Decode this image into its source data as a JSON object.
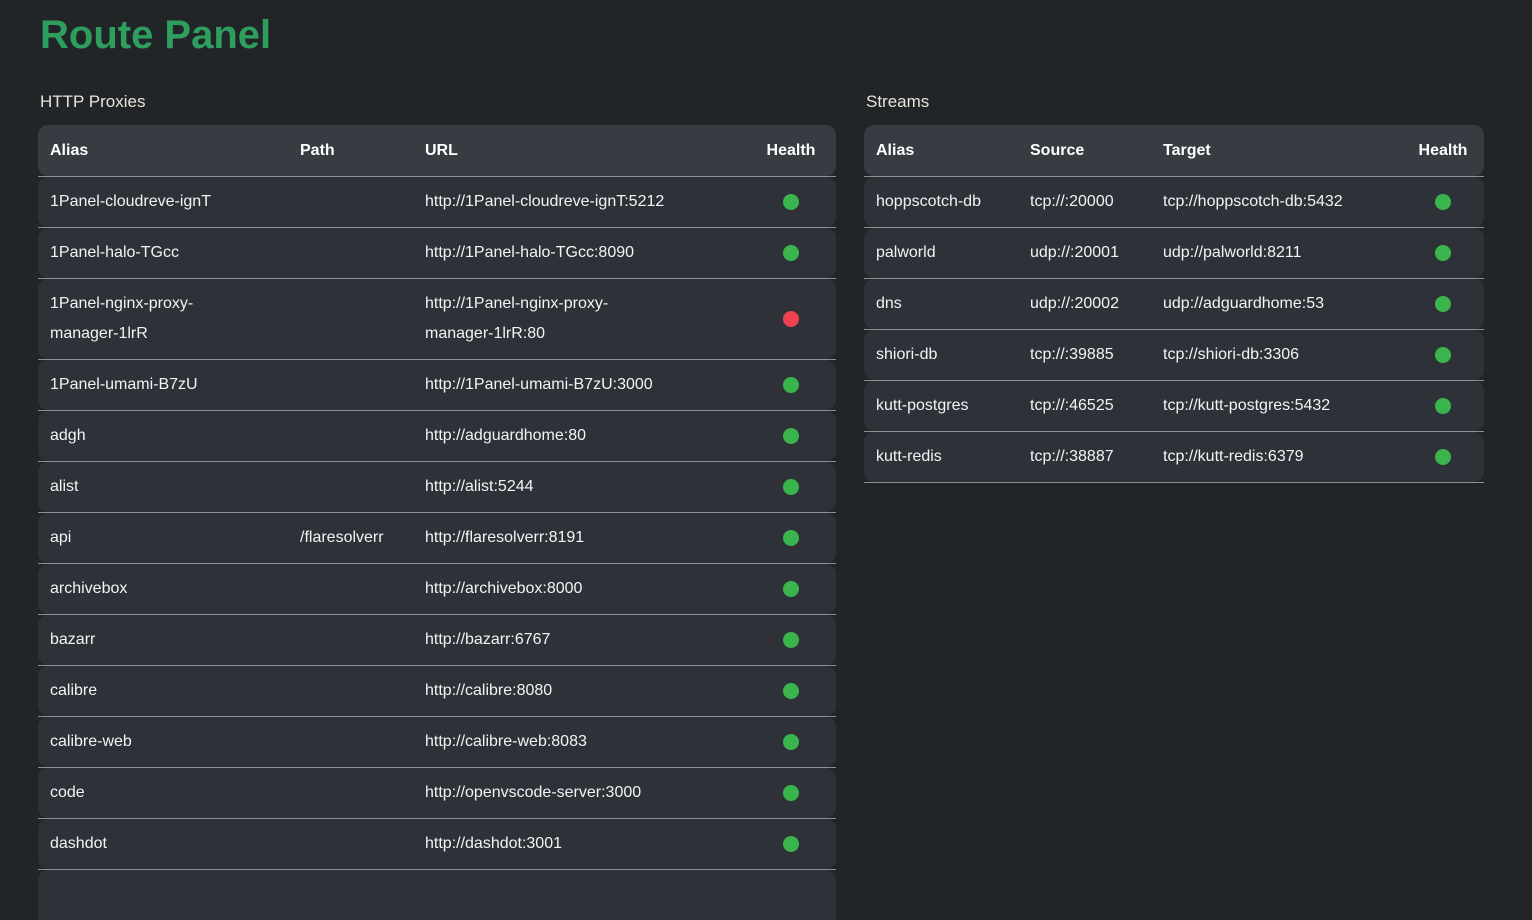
{
  "page": {
    "title": "Route Panel",
    "colors": {
      "background": "#222528",
      "title_green": "#2e9e5e",
      "section_label": "#e9e4d9",
      "row_background": "#2e3238",
      "header_background": "#373b42",
      "cell_text": "#f2f3f5",
      "divider": "#8d9093",
      "status_up": "#3ab54e",
      "status_down": "#ee4150"
    }
  },
  "http_proxies": {
    "label": "HTTP Proxies",
    "columns": [
      "Alias",
      "Path",
      "URL",
      "Health"
    ],
    "overflow_row": true,
    "rows": [
      {
        "alias": "1Panel-cloudreve-ignT",
        "path": "",
        "url": "http://1Panel-cloudreve-ignT:5212",
        "health": "up"
      },
      {
        "alias": "1Panel-halo-TGcc",
        "path": "",
        "url": "http://1Panel-halo-TGcc:8090",
        "health": "up"
      },
      {
        "alias": "1Panel-nginx-proxy-\nmanager-1lrR",
        "path": "",
        "url": "http://1Panel-nginx-proxy-\nmanager-1lrR:80",
        "health": "down"
      },
      {
        "alias": "1Panel-umami-B7zU",
        "path": "",
        "url": "http://1Panel-umami-B7zU:3000",
        "health": "up"
      },
      {
        "alias": "adgh",
        "path": "",
        "url": "http://adguardhome:80",
        "health": "up"
      },
      {
        "alias": "alist",
        "path": "",
        "url": "http://alist:5244",
        "health": "up"
      },
      {
        "alias": "api",
        "path": "/flaresolverr",
        "url": "http://flaresolverr:8191",
        "health": "up"
      },
      {
        "alias": "archivebox",
        "path": "",
        "url": "http://archivebox:8000",
        "health": "up"
      },
      {
        "alias": "bazarr",
        "path": "",
        "url": "http://bazarr:6767",
        "health": "up"
      },
      {
        "alias": "calibre",
        "path": "",
        "url": "http://calibre:8080",
        "health": "up"
      },
      {
        "alias": "calibre-web",
        "path": "",
        "url": "http://calibre-web:8083",
        "health": "up"
      },
      {
        "alias": "code",
        "path": "",
        "url": "http://openvscode-server:3000",
        "health": "up"
      },
      {
        "alias": "dashdot",
        "path": "",
        "url": "http://dashdot:3001",
        "health": "up"
      }
    ]
  },
  "streams": {
    "label": "Streams",
    "columns": [
      "Alias",
      "Source",
      "Target",
      "Health"
    ],
    "overflow_row": false,
    "rows": [
      {
        "alias": "hoppscotch-db",
        "source": "tcp://:20000",
        "target": "tcp://hoppscotch-db:5432",
        "health": "up"
      },
      {
        "alias": "palworld",
        "source": "udp://:20001",
        "target": "udp://palworld:8211",
        "health": "up"
      },
      {
        "alias": "dns",
        "source": "udp://:20002",
        "target": "udp://adguardhome:53",
        "health": "up"
      },
      {
        "alias": "shiori-db",
        "source": "tcp://:39885",
        "target": "tcp://shiori-db:3306",
        "health": "up"
      },
      {
        "alias": "kutt-postgres",
        "source": "tcp://:46525",
        "target": "tcp://kutt-postgres:5432",
        "health": "up"
      },
      {
        "alias": "kutt-redis",
        "source": "tcp://:38887",
        "target": "tcp://kutt-redis:6379",
        "health": "up"
      }
    ]
  }
}
